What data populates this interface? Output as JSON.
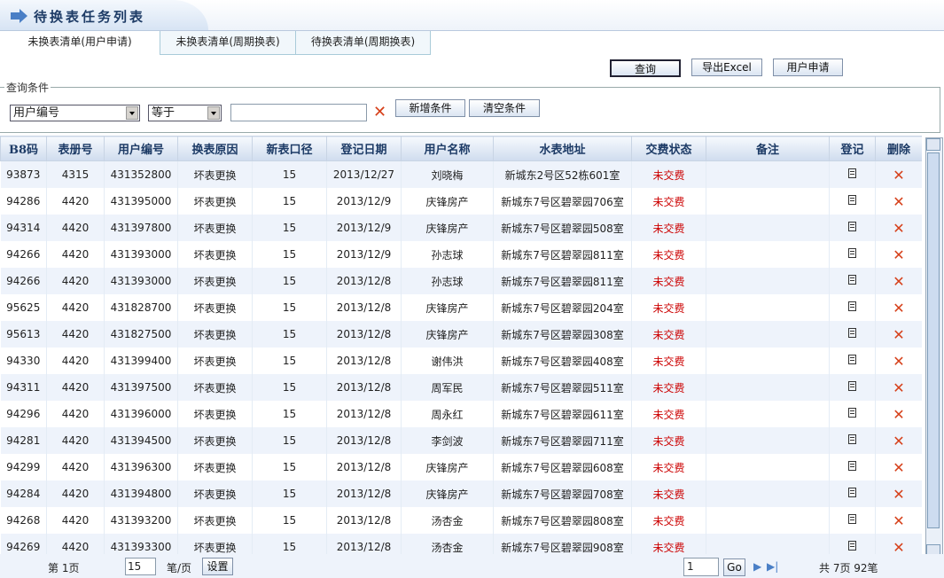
{
  "title": "待换表任务列表",
  "tabs": [
    "未换表清单(用户申请)",
    "未换表清单(周期换表)",
    "待换表清单(周期换表)"
  ],
  "toolbar": {
    "query": "查询",
    "export": "导出Excel",
    "apply": "用户申请"
  },
  "filter": {
    "legend": "查询条件",
    "field": "用户编号",
    "operator": "等于",
    "value": "",
    "add": "新增条件",
    "clear": "清空条件"
  },
  "columns": [
    "B8码",
    "表册号",
    "用户编号",
    "换表原因",
    "新表口径",
    "登记日期",
    "用户名称",
    "水表地址",
    "交费状态",
    "备注",
    "登记",
    "删除"
  ],
  "rows": [
    [
      "93873",
      "4315",
      "431352800",
      "坏表更换",
      "15",
      "2013/12/27",
      "刘晓梅",
      "新城东2号区52栋601室",
      "未交费",
      ""
    ],
    [
      "94286",
      "4420",
      "431395000",
      "坏表更换",
      "15",
      "2013/12/9",
      "庆锋房产",
      "新城东7号区碧翠园706室",
      "未交费",
      ""
    ],
    [
      "94314",
      "4420",
      "431397800",
      "坏表更换",
      "15",
      "2013/12/9",
      "庆锋房产",
      "新城东7号区碧翠园508室",
      "未交费",
      ""
    ],
    [
      "94266",
      "4420",
      "431393000",
      "坏表更换",
      "15",
      "2013/12/9",
      "孙志球",
      "新城东7号区碧翠园811室",
      "未交费",
      ""
    ],
    [
      "94266",
      "4420",
      "431393000",
      "坏表更换",
      "15",
      "2013/12/8",
      "孙志球",
      "新城东7号区碧翠园811室",
      "未交费",
      ""
    ],
    [
      "95625",
      "4420",
      "431828700",
      "坏表更换",
      "15",
      "2013/12/8",
      "庆锋房产",
      "新城东7号区碧翠园204室",
      "未交费",
      ""
    ],
    [
      "95613",
      "4420",
      "431827500",
      "坏表更换",
      "15",
      "2013/12/8",
      "庆锋房产",
      "新城东7号区碧翠园308室",
      "未交费",
      ""
    ],
    [
      "94330",
      "4420",
      "431399400",
      "坏表更换",
      "15",
      "2013/12/8",
      "谢伟洪",
      "新城东7号区碧翠园408室",
      "未交费",
      ""
    ],
    [
      "94311",
      "4420",
      "431397500",
      "坏表更换",
      "15",
      "2013/12/8",
      "周军民",
      "新城东7号区碧翠园511室",
      "未交费",
      ""
    ],
    [
      "94296",
      "4420",
      "431396000",
      "坏表更换",
      "15",
      "2013/12/8",
      "周永红",
      "新城东7号区碧翠园611室",
      "未交费",
      ""
    ],
    [
      "94281",
      "4420",
      "431394500",
      "坏表更换",
      "15",
      "2013/12/8",
      "李剑波",
      "新城东7号区碧翠园711室",
      "未交费",
      ""
    ],
    [
      "94299",
      "4420",
      "431396300",
      "坏表更换",
      "15",
      "2013/12/8",
      "庆锋房产",
      "新城东7号区碧翠园608室",
      "未交费",
      ""
    ],
    [
      "94284",
      "4420",
      "431394800",
      "坏表更换",
      "15",
      "2013/12/8",
      "庆锋房产",
      "新城东7号区碧翠园708室",
      "未交费",
      ""
    ],
    [
      "94268",
      "4420",
      "431393200",
      "坏表更换",
      "15",
      "2013/12/8",
      "汤杏金",
      "新城东7号区碧翠园808室",
      "未交费",
      ""
    ],
    [
      "94269",
      "4420",
      "431393300",
      "坏表更换",
      "15",
      "2013/12/8",
      "汤杏金",
      "新城东7号区碧翠园908室",
      "未交费",
      ""
    ]
  ],
  "footer": {
    "page": "第 1页",
    "page_size": "15",
    "per_page": "笔/页",
    "set": "设置",
    "goto": "1",
    "go": "Go",
    "total": "共 7页 92笔"
  },
  "colors": {
    "status": "#cc0000",
    "delete": "#d6401a",
    "header": "#1d3b66"
  }
}
